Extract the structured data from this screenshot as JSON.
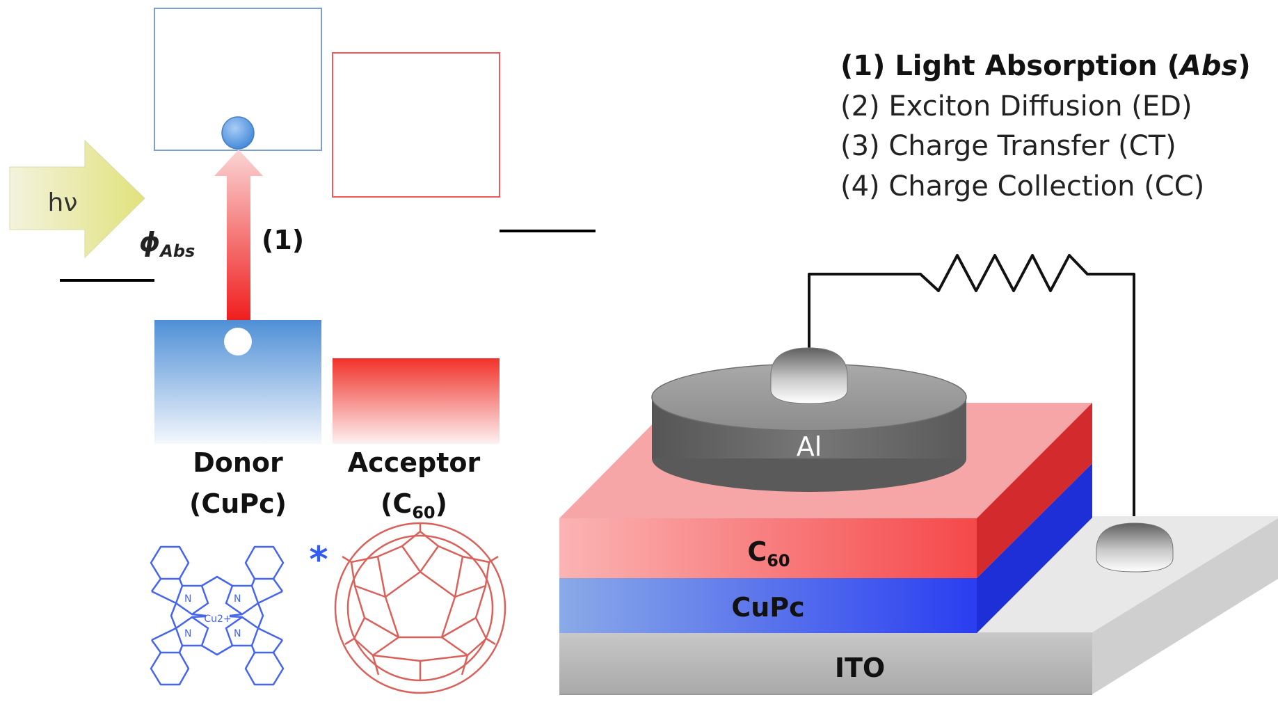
{
  "legend": {
    "step1_prefix": "(1) Light Absorption (",
    "step1_abbr": "Abs",
    "step1_suffix": ")",
    "step2": "(2)  Exciton Diffusion (ED)",
    "step3": "(3)  Charge Transfer (CT)",
    "step4": "(4)  Charge Collection (CC)"
  },
  "energy_diagram": {
    "photon_label": "hν",
    "phi_symbol": "ϕ",
    "phi_subscript": "Abs",
    "transition_label": "(1)",
    "donor_label": "Donor",
    "donor_material": "(CuPc)",
    "acceptor_label": "Acceptor",
    "acceptor_material_base": "(C",
    "acceptor_material_sub": "60",
    "acceptor_material_close": ")"
  },
  "molecules": {
    "cupc_asterisk": "*",
    "cupc_center": "Cu2+",
    "cupc_atom": "N"
  },
  "device": {
    "electrode_label": "Al",
    "acceptor_layer_base": "C",
    "acceptor_layer_sub": "60",
    "donor_layer": "CuPc",
    "substrate": "ITO"
  },
  "colors": {
    "donor": "#4f8fd6",
    "acceptor": "#f0322a",
    "cupc_layer": "#2a3df0",
    "c60_layer": "#f5484a",
    "molecule_blue": "#4565ee",
    "molecule_red": "#d9615a"
  }
}
